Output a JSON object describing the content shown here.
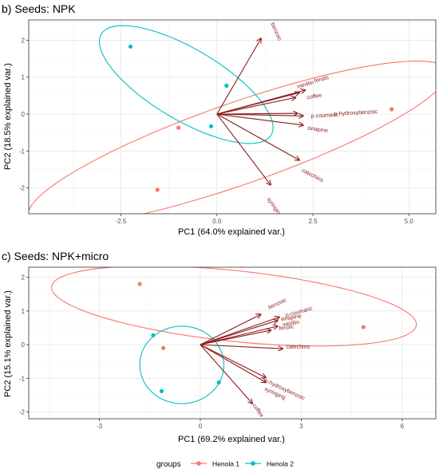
{
  "colors": {
    "group1": "#f8766d",
    "group2": "#00bfc4",
    "arrow": "#8b1a1a"
  },
  "legend": {
    "title": "groups",
    "items": [
      "Henola 1",
      "Henola 2"
    ]
  },
  "chart_data": [
    {
      "type": "scatter",
      "title": "b) Seeds: NPK",
      "xlabel": "PC1 (64.0% explained var.)",
      "ylabel": "PC2 (18.5% explained var.)",
      "xlim": [
        -4.9,
        5.7
      ],
      "ylim": [
        -2.7,
        2.55
      ],
      "xticks": [
        -2.5,
        0.0,
        2.5,
        5.0
      ],
      "xtick_labels": [
        "-2.5",
        "0.0",
        "2.5",
        "5.0"
      ],
      "yticks": [
        -2,
        -1,
        0,
        1,
        2
      ],
      "ytick_labels": [
        "-2",
        "-1",
        "0",
        "1",
        "2"
      ],
      "grid": true,
      "series": [
        {
          "name": "Henola 1",
          "points": [
            [
              -1.55,
              -2.05
            ],
            [
              -1.0,
              -0.37
            ],
            [
              4.55,
              0.13
            ]
          ]
        },
        {
          "name": "Henola 2",
          "points": [
            [
              -2.25,
              1.83
            ],
            [
              0.25,
              0.77
            ],
            [
              -0.15,
              -0.33
            ]
          ]
        }
      ],
      "ellipses": [
        {
          "group": "Henola 1",
          "cx": 0.55,
          "cy": -0.8,
          "rx": 5.8,
          "ry": 1.1,
          "angle": 20
        },
        {
          "group": "Henola 2",
          "cx": -0.8,
          "cy": 0.8,
          "rx": 2.6,
          "ry": 0.95,
          "angle": -32
        }
      ],
      "loadings": [
        {
          "name": "benzoic",
          "x": 1.15,
          "y": 2.05,
          "lx": 1.4,
          "ly": 2.45,
          "rot": 65
        },
        {
          "name": "vanillin",
          "x": 2.15,
          "y": 0.58,
          "lx": 2.1,
          "ly": 0.7,
          "rot": -15
        },
        {
          "name": "ferulic",
          "x": 2.3,
          "y": 0.65,
          "lx": 2.55,
          "ly": 0.85,
          "rot": -15
        },
        {
          "name": "coffee",
          "x": 2.05,
          "y": 0.45,
          "lx": 2.35,
          "ly": 0.4,
          "rot": -10
        },
        {
          "name": "p-hydroxybenzoic",
          "x": 2.25,
          "y": -0.05,
          "lx": 3.05,
          "ly": -0.04,
          "rot": -3
        },
        {
          "name": "p-coumaric",
          "x": 2.1,
          "y": 0.02,
          "lx": 2.45,
          "ly": -0.1,
          "rot": -3
        },
        {
          "name": "sinapine",
          "x": 2.25,
          "y": -0.3,
          "lx": 2.35,
          "ly": -0.42,
          "rot": 8
        },
        {
          "name": "catechins",
          "x": 2.15,
          "y": -1.25,
          "lx": 2.2,
          "ly": -1.55,
          "rot": 28
        },
        {
          "name": "syringing",
          "x": 1.4,
          "y": -1.92,
          "lx": 1.3,
          "ly": -2.3,
          "rot": 55
        }
      ]
    },
    {
      "type": "scatter",
      "title": "c) Seeds: NPK+micro",
      "xlabel": "PC1 (69.2% explained var.)",
      "ylabel": "PC2 (15.1% explained var.)",
      "xlim": [
        -5.1,
        7.0
      ],
      "ylim": [
        -2.2,
        2.3
      ],
      "xticks": [
        -3,
        0,
        3,
        6
      ],
      "xtick_labels": [
        "-3",
        "0",
        "3",
        "6"
      ],
      "yticks": [
        -2,
        -1,
        0,
        1,
        2
      ],
      "ytick_labels": [
        "-2",
        "-1",
        "0",
        "1",
        "2"
      ],
      "grid": true,
      "series": [
        {
          "name": "Henola 1",
          "points": [
            [
              -1.8,
              1.8
            ],
            [
              -1.1,
              -0.1
            ],
            [
              4.85,
              0.52
            ]
          ]
        },
        {
          "name": "Henola 2",
          "points": [
            [
              -1.4,
              0.28
            ],
            [
              -1.15,
              -1.38
            ],
            [
              0.55,
              -1.12
            ]
          ]
        }
      ],
      "ellipses": [
        {
          "group": "Henola 1",
          "cx": 1.0,
          "cy": 1.15,
          "rx": 5.45,
          "ry": 1.05,
          "angle": -6
        },
        {
          "group": "Henola 2",
          "cx": -0.55,
          "cy": -0.6,
          "rx": 1.25,
          "ry": 1.15,
          "angle": 0
        }
      ],
      "loadings": [
        {
          "name": "benzoic",
          "x": 1.8,
          "y": 0.9,
          "lx": 2.05,
          "ly": 1.05,
          "rot": -25
        },
        {
          "name": "p-coumaric",
          "x": 2.35,
          "y": 0.82,
          "lx": 2.55,
          "ly": 0.82,
          "rot": -15
        },
        {
          "name": "sinapine",
          "x": 2.3,
          "y": 0.72,
          "lx": 2.4,
          "ly": 0.7,
          "rot": -10
        },
        {
          "name": "vanillin",
          "x": 2.3,
          "y": 0.55,
          "lx": 2.45,
          "ly": 0.55,
          "rot": -8
        },
        {
          "name": "ferulic",
          "x": 2.1,
          "y": 0.43,
          "lx": 2.35,
          "ly": 0.43,
          "rot": -8
        },
        {
          "name": "catechins",
          "x": 2.45,
          "y": -0.12,
          "lx": 2.55,
          "ly": -0.12,
          "rot": 0
        },
        {
          "name": "p-hydroxybenzoic",
          "x": 1.95,
          "y": -0.98,
          "lx": 1.9,
          "ly": -1.1,
          "rot": 25
        },
        {
          "name": "syringing",
          "x": 1.95,
          "y": -1.12,
          "lx": 1.9,
          "ly": -1.35,
          "rot": 25
        },
        {
          "name": "coffee",
          "x": 1.55,
          "y": -1.75,
          "lx": 1.55,
          "ly": -1.8,
          "rot": 55
        }
      ]
    }
  ]
}
